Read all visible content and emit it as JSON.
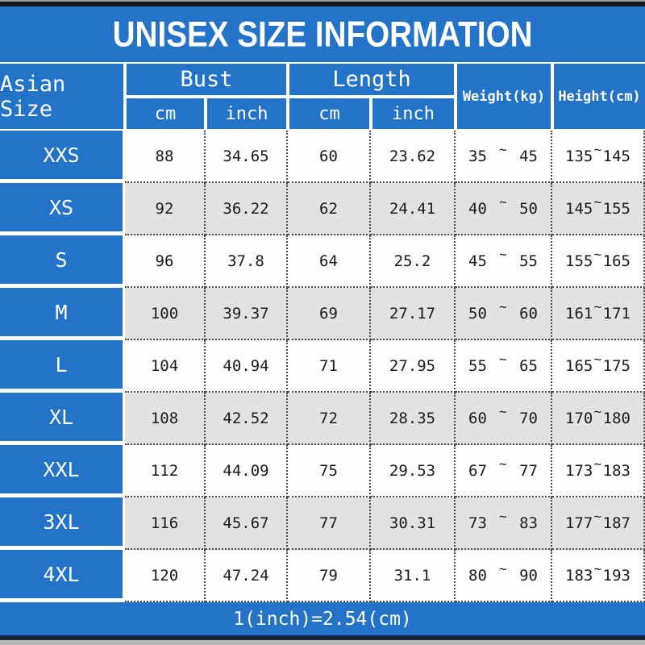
{
  "page": {
    "title": "UNISEX SIZE INFORMATION",
    "footer_note": "1(inch)=2.54(cm)"
  },
  "colors": {
    "accent_blue": "#2373c8",
    "row_alt_gray": "#e2e2e2",
    "header_text": "#ffffff",
    "data_text": "#1c1c1c"
  },
  "table": {
    "col_size": "Asian Size",
    "group_bust": "Bust",
    "group_length": "Length",
    "col_weight": "Weight(kg)",
    "col_height": "Height(cm)",
    "sub_cm": "cm",
    "sub_inch": "inch",
    "range_separator": "~",
    "rows": [
      {
        "size": "XXS",
        "bust_cm": "88",
        "bust_inch": "34.65",
        "length_cm": "60",
        "length_inch": "23.62",
        "weight_min": "35",
        "weight_max": "45",
        "height_min": "135",
        "height_max": "145"
      },
      {
        "size": "XS",
        "bust_cm": "92",
        "bust_inch": "36.22",
        "length_cm": "62",
        "length_inch": "24.41",
        "weight_min": "40",
        "weight_max": "50",
        "height_min": "145",
        "height_max": "155"
      },
      {
        "size": "S",
        "bust_cm": "96",
        "bust_inch": "37.8",
        "length_cm": "64",
        "length_inch": "25.2",
        "weight_min": "45",
        "weight_max": "55",
        "height_min": "155",
        "height_max": "165"
      },
      {
        "size": "M",
        "bust_cm": "100",
        "bust_inch": "39.37",
        "length_cm": "69",
        "length_inch": "27.17",
        "weight_min": "50",
        "weight_max": "60",
        "height_min": "161",
        "height_max": "171"
      },
      {
        "size": "L",
        "bust_cm": "104",
        "bust_inch": "40.94",
        "length_cm": "71",
        "length_inch": "27.95",
        "weight_min": "55",
        "weight_max": "65",
        "height_min": "165",
        "height_max": "175"
      },
      {
        "size": "XL",
        "bust_cm": "108",
        "bust_inch": "42.52",
        "length_cm": "72",
        "length_inch": "28.35",
        "weight_min": "60",
        "weight_max": "70",
        "height_min": "170",
        "height_max": "180"
      },
      {
        "size": "XXL",
        "bust_cm": "112",
        "bust_inch": "44.09",
        "length_cm": "75",
        "length_inch": "29.53",
        "weight_min": "67",
        "weight_max": "77",
        "height_min": "173",
        "height_max": "183"
      },
      {
        "size": "3XL",
        "bust_cm": "116",
        "bust_inch": "45.67",
        "length_cm": "77",
        "length_inch": "30.31",
        "weight_min": "73",
        "weight_max": "83",
        "height_min": "177",
        "height_max": "187"
      },
      {
        "size": "4XL",
        "bust_cm": "120",
        "bust_inch": "47.24",
        "length_cm": "79",
        "length_inch": "31.1",
        "weight_min": "80",
        "weight_max": "90",
        "height_min": "183",
        "height_max": "193"
      }
    ]
  }
}
